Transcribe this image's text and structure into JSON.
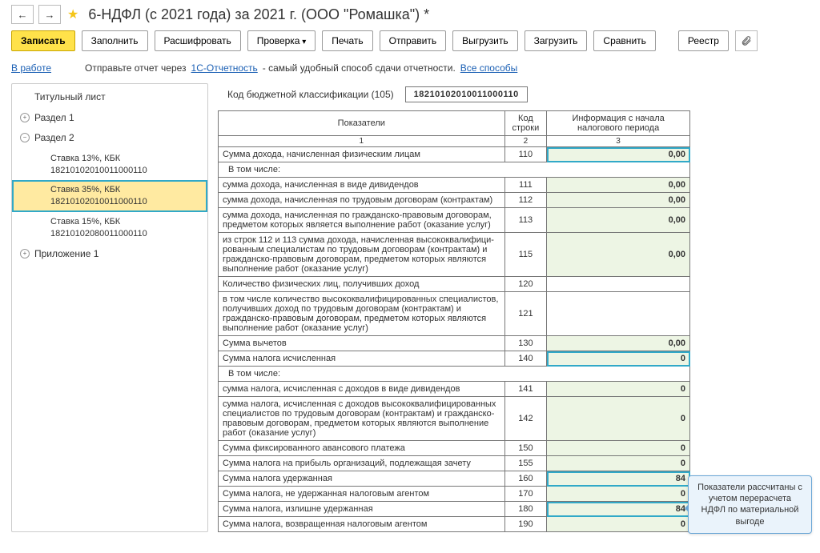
{
  "header": {
    "title": "6-НДФЛ (с 2021 года) за 2021 г. (ООО \"Ромашка\") *"
  },
  "toolbar": {
    "write": "Записать",
    "fill": "Заполнить",
    "decode": "Расшифровать",
    "check": "Проверка",
    "print": "Печать",
    "send": "Отправить",
    "upload": "Выгрузить",
    "download": "Загрузить",
    "compare": "Сравнить",
    "registry": "Реестр"
  },
  "infobar": {
    "status": "В работе",
    "text1": "Отправьте отчет через",
    "link1": "1С-Отчетность",
    "text2": "- самый удобный способ сдачи отчетности.",
    "link2": "Все способы"
  },
  "tree": {
    "title_page": "Титульный лист",
    "sec1": "Раздел 1",
    "sec2": "Раздел 2",
    "s2_a": "Ставка 13%, КБК",
    "s2_a_kbk": "18210102010011000110",
    "s2_b": "Ставка 35%, КБК",
    "s2_b_kbk": "18210102010011000110",
    "s2_c": "Ставка 15%, КБК",
    "s2_c_kbk": "18210102080011000110",
    "app1": "Приложение 1"
  },
  "kbk": {
    "label": "Код бюджетной классификации   (105)",
    "value": "18210102010011000110"
  },
  "table": {
    "h1": "Показатели",
    "h2": "Код строки",
    "h3": "Информация с начала налогового периода",
    "n1": "1",
    "n2": "2",
    "n3": "3",
    "rows": [
      {
        "label": "Сумма дохода, начисленная физическим лицам",
        "code": "110",
        "val": "0,00",
        "hl": true
      },
      {
        "label": "В том числе:",
        "section": true
      },
      {
        "label": "сумма дохода, начисленная в виде дивидендов",
        "code": "111",
        "val": "0,00",
        "indent": true
      },
      {
        "label": "сумма дохода, начисленная по трудовым договорам (контрактам)",
        "code": "112",
        "val": "0,00",
        "indent": true
      },
      {
        "label": "сумма дохода, начисленная по гражданско-правовым договорам, предметом которых является выполнение работ (оказание услуг)",
        "code": "113",
        "val": "0,00",
        "indent": true
      },
      {
        "label": "из строк 112 и 113 сумма дохода, начисленная высококвалифици-рованным специалистам по трудовым договорам (контрактам) и гражданско-правовым договорам, предметом которых являются выполнение работ (оказание услуг)",
        "code": "115",
        "val": "0,00",
        "indent": true
      },
      {
        "label": "Количество физических лиц, получивших доход",
        "code": "120",
        "val": "",
        "empty": true
      },
      {
        "label": "в том числе количество высококвалифицированных специалистов, получивших доход по трудовым договорам (контрактам) и гражданско-правовым договорам, предметом которых являются выполнение работ (оказание услуг)",
        "code": "121",
        "val": "",
        "indent": true,
        "empty": true
      },
      {
        "label": "Сумма вычетов",
        "code": "130",
        "val": "0,00"
      },
      {
        "label": "Сумма налога исчисленная",
        "code": "140",
        "val": "0",
        "hl": true
      },
      {
        "label": "В том числе:",
        "section": true
      },
      {
        "label": "сумма налога, исчисленная с доходов в виде дивидендов",
        "code": "141",
        "val": "0",
        "indent": true
      },
      {
        "label": "сумма налога, исчисленная с доходов высококвалифицированных специалистов по трудовым договорам (контрактам) и гражданско-правовым договорам, предметом которых являются выполнение работ (оказание услуг)",
        "code": "142",
        "val": "0",
        "indent": true
      },
      {
        "label": "Сумма фиксированного авансового платежа",
        "code": "150",
        "val": "0"
      },
      {
        "label": "Сумма налога на прибыль организаций, подлежащая зачету",
        "code": "155",
        "val": "0"
      },
      {
        "label": "Сумма налога удержанная",
        "code": "160",
        "val": "84",
        "hl": true
      },
      {
        "label": "Сумма налога, не удержанная налоговым агентом",
        "code": "170",
        "val": "0"
      },
      {
        "label": "Сумма налога, излишне удержанная",
        "code": "180",
        "val": "84",
        "hl": true
      },
      {
        "label": "Сумма налога, возвращенная налоговым агентом",
        "code": "190",
        "val": "0"
      }
    ]
  },
  "callout": "Показатели рассчитаны с учетом перерасчета НДФЛ по материальной выгоде",
  "colors": {
    "accent_yellow": "#ffe24a",
    "highlight_teal": "#31a9c8",
    "selected_bg": "#ffeaa1",
    "value_bg": "#edf5e4",
    "callout_bg": "#eaf3fb"
  }
}
